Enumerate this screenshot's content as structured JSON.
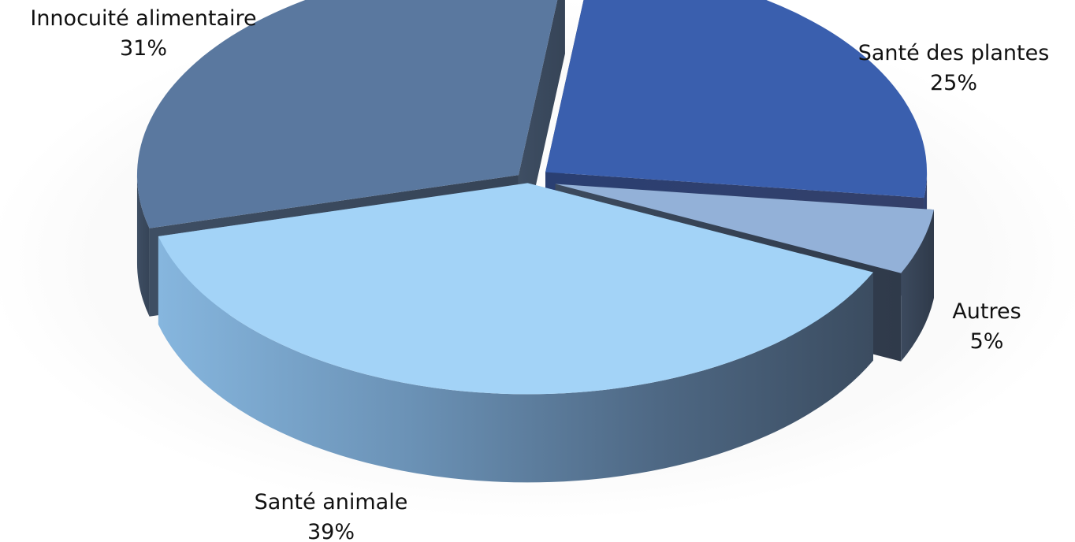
{
  "chart_data": {
    "type": "pie",
    "style": "3d-exploded",
    "title": "",
    "slices": [
      {
        "label": "Santé des plantes",
        "value": 25,
        "value_label": "25%",
        "color": "#3a5fae"
      },
      {
        "label": "Autres",
        "value": 5,
        "value_label": "5%",
        "color": "#93b1d8"
      },
      {
        "label": "Santé animale",
        "value": 39,
        "value_label": "39%",
        "color": "#a3d3f7"
      },
      {
        "label": "Innocuité alimentaire",
        "value": 31,
        "value_label": "31%",
        "color": "#5a789f"
      }
    ],
    "legend": "none",
    "labels": "outside"
  }
}
